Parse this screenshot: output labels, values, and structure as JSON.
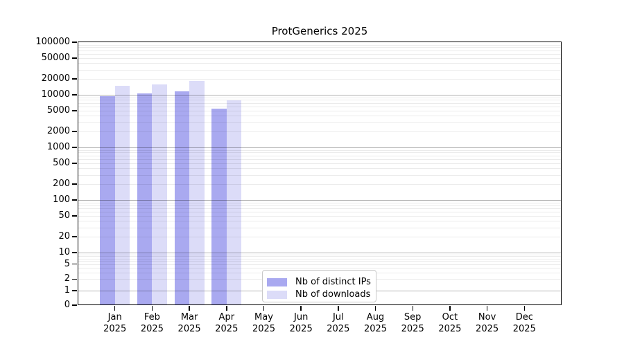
{
  "chart_data": {
    "type": "bar",
    "title": "ProtGenerics 2025",
    "xlabel": "",
    "ylabel": "",
    "yscale": "symlog",
    "ylim": [
      0,
      100000
    ],
    "grid": "horizontal major and minor, drawn over bars",
    "legend_position": "lower center inside plot",
    "y_ticks": [
      100000,
      50000,
      20000,
      10000,
      5000,
      2000,
      1000,
      500,
      200,
      100,
      50,
      20,
      10,
      5,
      2,
      1,
      0
    ],
    "x_months": [
      "Jan",
      "Feb",
      "Mar",
      "Apr",
      "May",
      "Jun",
      "Jul",
      "Aug",
      "Sep",
      "Oct",
      "Nov",
      "Dec"
    ],
    "x_year": "2025",
    "categories": [
      "Jan 2025",
      "Feb 2025",
      "Mar 2025",
      "Apr 2025",
      "May 2025",
      "Jun 2025",
      "Jul 2025",
      "Aug 2025",
      "Sep 2025",
      "Oct 2025",
      "Nov 2025",
      "Dec 2025"
    ],
    "series": [
      {
        "name": "Nb of distinct IPs",
        "color": "#a9a9f0",
        "values": [
          9500,
          10600,
          11600,
          5500,
          0,
          0,
          0,
          0,
          0,
          0,
          0,
          0
        ]
      },
      {
        "name": "Nb of downloads",
        "color": "#dcdcf8",
        "values": [
          14700,
          15600,
          18300,
          7800,
          0,
          0,
          0,
          0,
          0,
          0,
          0,
          0
        ]
      }
    ]
  },
  "colors": {
    "background": "#ffffff",
    "axis": "#000000",
    "major_grid": "#b0b0b0",
    "minor_grid": "#e8e8e8",
    "legend_border": "#c8c8c8",
    "text": "#000000"
  }
}
